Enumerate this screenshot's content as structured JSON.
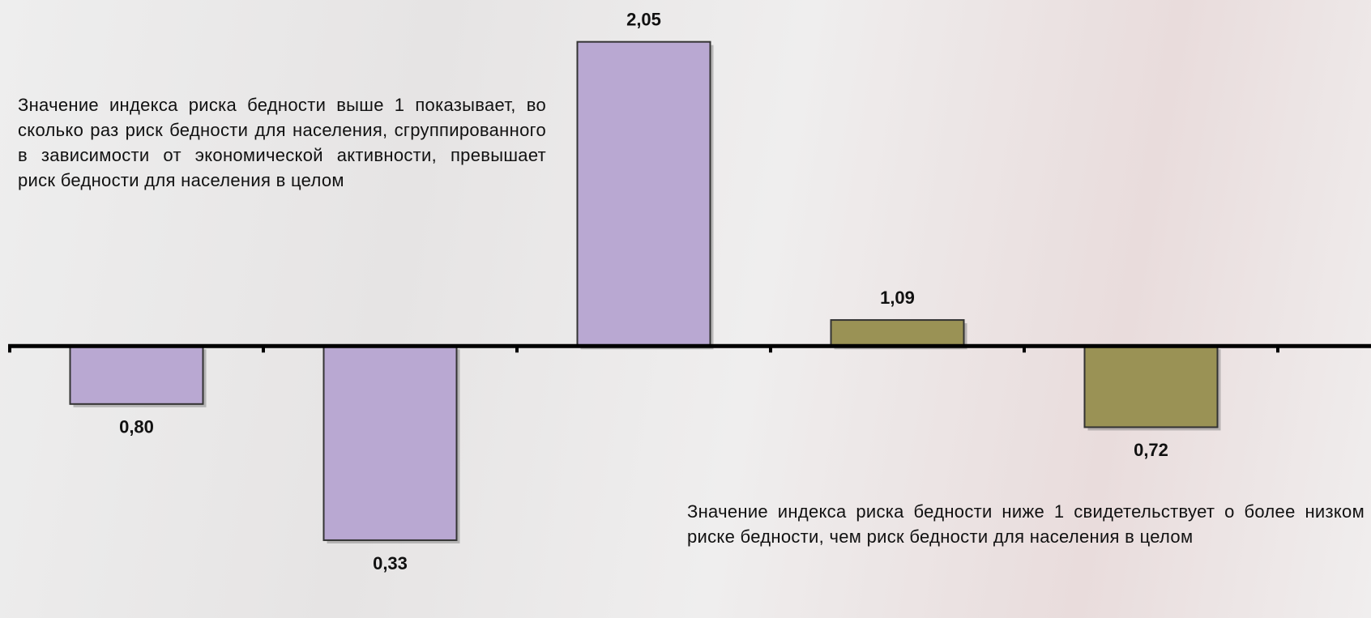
{
  "chart_data": {
    "type": "bar",
    "categories": [
      null,
      null,
      null,
      null,
      null
    ],
    "values": [
      0.8,
      0.33,
      2.05,
      1.09,
      0.72
    ],
    "value_labels": [
      "0,80",
      "0,33",
      "2,05",
      "1,09",
      "0,72"
    ],
    "colors": [
      "#b9a8d2",
      "#b9a8d2",
      "#b9a8d2",
      "#9a9255",
      "#9a9255"
    ],
    "baseline": 1,
    "ylim": [
      0,
      2.2
    ],
    "annotations": [
      "Значение индекса риска бедности выше 1 показывает, во сколько раз риск бедности для населения, сгруппированного в зависимости от экономической активности, превышает риск бедности для населения в целом",
      "Значение индекса риска бедности ниже 1 свидетельствует о более низком риске бедности, чем риск бедности для населения в целом"
    ]
  }
}
